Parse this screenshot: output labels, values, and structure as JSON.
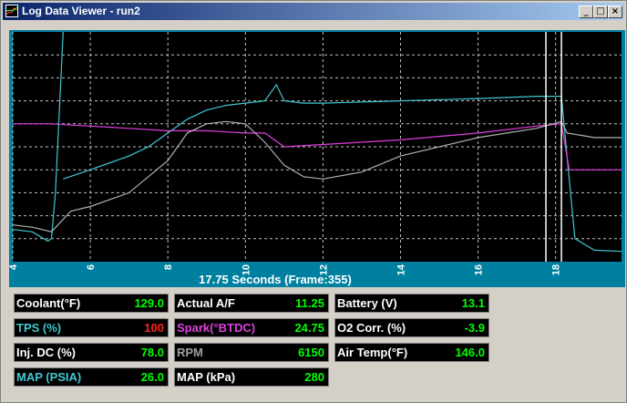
{
  "window": {
    "title": "Log Data Viewer - run2",
    "minimize_glyph": "_",
    "maximize_glyph": "□",
    "close_glyph": "×"
  },
  "colors": {
    "white": "#ffffff",
    "cyan": "#40c8d0",
    "magenta": "#e040e0",
    "gray": "#b0b0b0",
    "green": "#00ff00",
    "red": "#ff2020"
  },
  "chart_data": {
    "type": "line",
    "xlabel": "17.75 Seconds (Frame:355)",
    "xlim": [
      4,
      19.7
    ],
    "ylim": [
      0,
      10
    ],
    "x_ticks": [
      "4",
      "6",
      "8",
      "10",
      "12",
      "14",
      "16",
      "18"
    ],
    "grid": true,
    "cursor_x": [
      17.75,
      18.15
    ],
    "series": [
      {
        "color": "#40c8d0",
        "x": [
          4,
          4.5,
          4.9,
          5.0,
          5.1,
          5.3
        ],
        "y": [
          1.4,
          1.3,
          0.9,
          1.0,
          3.0,
          10
        ]
      },
      {
        "color": "#40c8d0",
        "x": [
          5.3,
          6,
          7,
          7.5,
          8,
          8.5,
          9,
          9.5,
          10,
          10.5,
          10.8,
          11,
          11.5,
          12,
          14,
          16,
          17.5,
          18.15,
          18.3,
          18.5,
          19,
          19.7
        ],
        "y": [
          3.6,
          4.0,
          4.6,
          5.0,
          5.6,
          6.2,
          6.6,
          6.8,
          6.9,
          7.0,
          7.7,
          7.0,
          6.9,
          6.9,
          7.0,
          7.1,
          7.2,
          7.2,
          4.5,
          1.0,
          0.5,
          0.45
        ]
      },
      {
        "color": "#e040e0",
        "x": [
          4,
          5,
          6,
          7,
          8,
          9,
          10,
          10.5,
          11,
          12,
          14,
          16,
          17.5,
          18.15,
          18.35,
          19,
          19.7
        ],
        "y": [
          6.0,
          6.0,
          5.9,
          5.8,
          5.7,
          5.7,
          5.6,
          5.6,
          5.0,
          5.1,
          5.3,
          5.6,
          5.9,
          6.0,
          4.0,
          4.0,
          4.0
        ]
      },
      {
        "color": "#b0b0b0",
        "x": [
          4,
          4.5,
          5,
          5.5,
          6,
          7,
          8,
          8.5,
          9,
          9.5,
          10,
          10.5,
          11,
          11.5,
          12,
          13,
          14,
          16,
          17.5,
          18.15,
          18.3,
          19,
          19.7
        ],
        "y": [
          1.6,
          1.5,
          1.3,
          2.2,
          2.4,
          3.0,
          4.4,
          5.6,
          6.0,
          6.1,
          6.0,
          5.2,
          4.2,
          3.7,
          3.6,
          3.9,
          4.6,
          5.4,
          5.8,
          6.1,
          5.6,
          5.4,
          5.4
        ]
      }
    ]
  },
  "readouts": [
    {
      "label": "Coolant(°F)",
      "value": "129.0",
      "label_color": "#ffffff",
      "value_color": "#00ff00"
    },
    {
      "label": "Actual A/F",
      "value": "11.25",
      "label_color": "#ffffff",
      "value_color": "#00ff00"
    },
    {
      "label": "Battery (V)",
      "value": "13.1",
      "label_color": "#ffffff",
      "value_color": "#00ff00"
    },
    {
      "label": "TPS (%)",
      "value": "100",
      "label_color": "#40c8d0",
      "value_color": "#ff2020"
    },
    {
      "label": "Spark(°BTDC)",
      "value": "24.75",
      "label_color": "#e040e0",
      "value_color": "#00ff00"
    },
    {
      "label": "O2 Corr. (%)",
      "value": "-3.9",
      "label_color": "#ffffff",
      "value_color": "#00ff00"
    },
    {
      "label": "Inj. DC (%)",
      "value": "78.0",
      "label_color": "#ffffff",
      "value_color": "#00ff00"
    },
    {
      "label": "RPM",
      "value": "6150",
      "label_color": "#a0a0a0",
      "value_color": "#00ff00"
    },
    {
      "label": "Air Temp(°F)",
      "value": "146.0",
      "label_color": "#ffffff",
      "value_color": "#00ff00"
    },
    {
      "label": "MAP (PSIA)",
      "value": "26.0",
      "label_color": "#40c8d0",
      "value_color": "#00ff00"
    },
    {
      "label": "MAP (kPa)",
      "value": "280",
      "label_color": "#ffffff",
      "value_color": "#00ff00"
    }
  ]
}
